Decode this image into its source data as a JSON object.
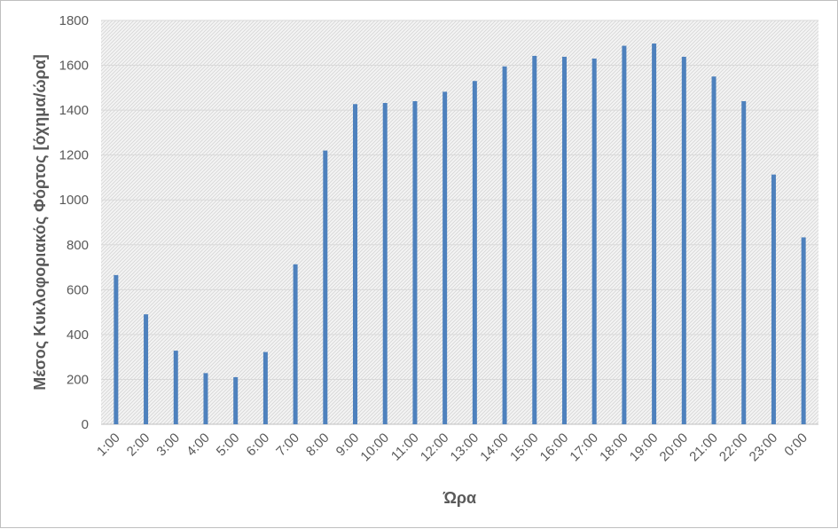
{
  "chart_data": {
    "type": "bar",
    "title": "",
    "xlabel": "Ώρα",
    "ylabel": "Μέσος Κυκλοφοριακός Φόρτος [όχημα/ώρα]",
    "ylim": [
      0,
      1800
    ],
    "yticks": [
      0,
      200,
      400,
      600,
      800,
      1000,
      1200,
      1400,
      1600,
      1800
    ],
    "grid": true,
    "legend": "none",
    "categories": [
      "1:00",
      "2:00",
      "3:00",
      "4:00",
      "5:00",
      "6:00",
      "7:00",
      "8:00",
      "9:00",
      "10:00",
      "11:00",
      "12:00",
      "13:00",
      "14:00",
      "15:00",
      "16:00",
      "17:00",
      "18:00",
      "19:00",
      "20:00",
      "21:00",
      "22:00",
      "23:00",
      "0:00"
    ],
    "series": [
      {
        "values": [
          665,
          490,
          328,
          228,
          210,
          322,
          713,
          1220,
          1427,
          1432,
          1440,
          1482,
          1530,
          1595,
          1642,
          1638,
          1630,
          1687,
          1697,
          1638,
          1550,
          1440,
          1113,
          833
        ],
        "color": "#4e81bd"
      }
    ]
  }
}
